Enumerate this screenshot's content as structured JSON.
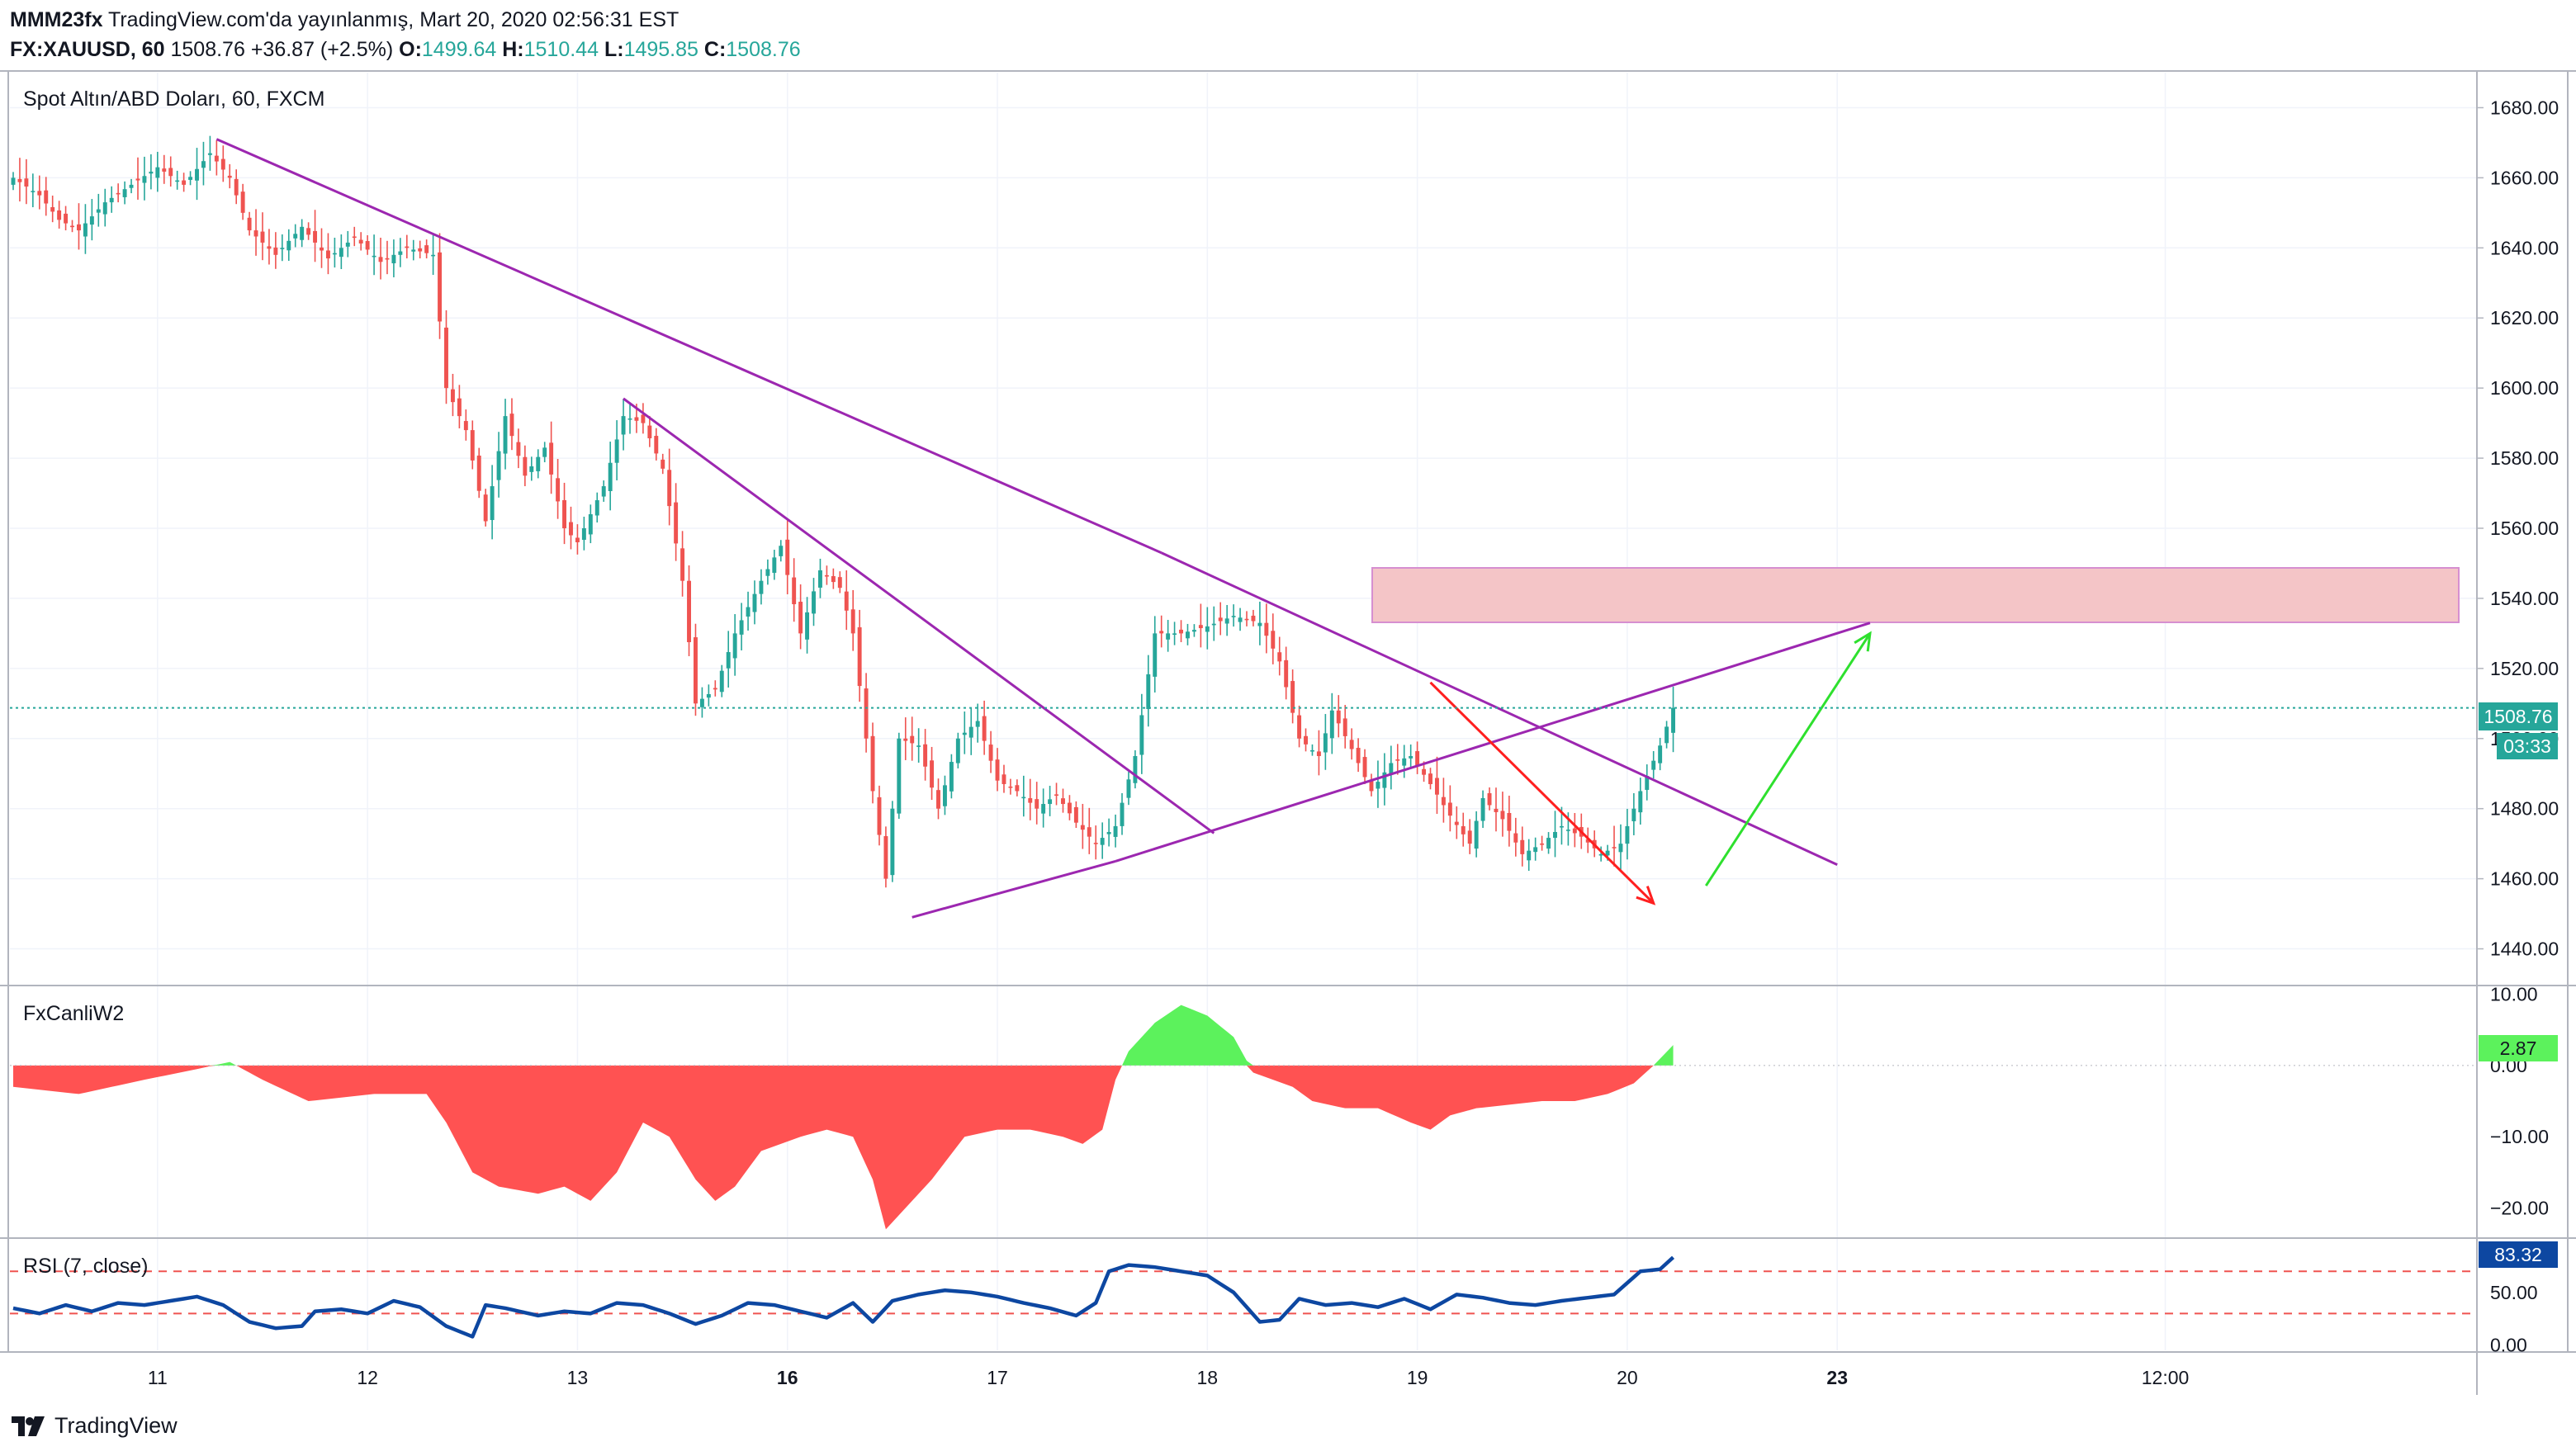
{
  "header": {
    "publisher": "MMM23fx",
    "published_text": "TradingView.com'da yayınlanmış, Mart 20, 2020 02:56:31 EST",
    "symbol": "FX:XAUUSD, 60",
    "last": "1508.76",
    "change": "+36.87 (+2.5%)",
    "o_label": "O:",
    "o_value": "1499.64",
    "h_label": "H:",
    "h_value": "1510.44",
    "l_label": "L:",
    "l_value": "1495.85",
    "c_label": "C:",
    "c_value": "1508.76"
  },
  "main_pane": {
    "title": "Spot Altın/ABD Doları, 60, FXCM",
    "price_label": "1508.76",
    "countdown": "03:33"
  },
  "osc_pane": {
    "title": "FxCanliW2",
    "value_label": "2.87",
    "ticks": [
      "10.00",
      "0.00",
      "−10.00",
      "−20.00"
    ]
  },
  "rsi_pane": {
    "title": "RSI (7, close)",
    "value_label": "83.32",
    "ticks": [
      "50.00",
      "0.00"
    ]
  },
  "footer": {
    "brand": "TradingView"
  },
  "colors": {
    "bull": "#26a69a",
    "bear": "#ef5350",
    "trendline": "#9c27b0",
    "zone_fill": "#f4c5c7",
    "zone_border": "#d68fd0",
    "red_arrow": "#ff1f1f",
    "green_arrow": "#2ee02e",
    "osc_pos": "#5cf25c",
    "osc_neg": "#ff5252",
    "rsi_line": "#0d47a1",
    "price_line": "#26a69a"
  },
  "chart_data": [
    {
      "type": "candlestick",
      "title": "Spot Altın/ABD Doları, 60, FXCM",
      "x_tick_labels": [
        "11",
        "12",
        "13",
        "16",
        "17",
        "18",
        "19",
        "20",
        "23",
        "12:00"
      ],
      "y_ticks": [
        1440,
        1460,
        1480,
        1500,
        1520,
        1540,
        1560,
        1580,
        1600,
        1620,
        1640,
        1660,
        1680
      ],
      "y_tick_labels": [
        "1440.00",
        "1460.00",
        "1480.00",
        "1500.00",
        "1520.00",
        "1540.00",
        "1560.00",
        "1580.00",
        "1600.00",
        "1620.00",
        "1640.00",
        "1660.00",
        "1680.00"
      ],
      "ylim": [
        1430,
        1690
      ],
      "last_price": 1508.76,
      "close_anchors": [
        [
          0,
          1660
        ],
        [
          4,
          1655
        ],
        [
          7,
          1648
        ],
        [
          10,
          1645
        ],
        [
          14,
          1653
        ],
        [
          18,
          1658
        ],
        [
          22,
          1663
        ],
        [
          26,
          1658
        ],
        [
          30,
          1667
        ],
        [
          33,
          1660
        ],
        [
          36,
          1645
        ],
        [
          40,
          1638
        ],
        [
          44,
          1646
        ],
        [
          48,
          1637
        ],
        [
          52,
          1643
        ],
        [
          56,
          1636
        ],
        [
          60,
          1640
        ],
        [
          64,
          1638
        ],
        [
          66,
          1600
        ],
        [
          69,
          1588
        ],
        [
          72,
          1562
        ],
        [
          75,
          1592
        ],
        [
          78,
          1575
        ],
        [
          81,
          1583
        ],
        [
          84,
          1560
        ],
        [
          86,
          1556
        ],
        [
          90,
          1572
        ],
        [
          93,
          1592
        ],
        [
          96,
          1590
        ],
        [
          99,
          1577
        ],
        [
          102,
          1545
        ],
        [
          104,
          1510
        ],
        [
          107,
          1514
        ],
        [
          110,
          1530
        ],
        [
          114,
          1545
        ],
        [
          117,
          1555
        ],
        [
          120,
          1530
        ],
        [
          123,
          1548
        ],
        [
          126,
          1543
        ],
        [
          128,
          1530
        ],
        [
          131,
          1485
        ],
        [
          133,
          1460
        ],
        [
          135,
          1500
        ],
        [
          138,
          1498
        ],
        [
          141,
          1480
        ],
        [
          144,
          1500
        ],
        [
          147,
          1505
        ],
        [
          150,
          1488
        ],
        [
          153,
          1485
        ],
        [
          156,
          1480
        ],
        [
          159,
          1484
        ],
        [
          162,
          1476
        ],
        [
          165,
          1470
        ],
        [
          168,
          1475
        ],
        [
          171,
          1495
        ],
        [
          174,
          1530
        ],
        [
          178,
          1530
        ],
        [
          182,
          1532
        ],
        [
          186,
          1535
        ],
        [
          190,
          1533
        ],
        [
          193,
          1522
        ],
        [
          196,
          1500
        ],
        [
          199,
          1495
        ],
        [
          201,
          1508
        ],
        [
          204,
          1497
        ],
        [
          207,
          1485
        ],
        [
          210,
          1493
        ],
        [
          213,
          1495
        ],
        [
          216,
          1487
        ],
        [
          219,
          1478
        ],
        [
          222,
          1470
        ],
        [
          224,
          1483
        ],
        [
          227,
          1477
        ],
        [
          230,
          1467
        ],
        [
          233,
          1470
        ],
        [
          236,
          1475
        ],
        [
          239,
          1472
        ],
        [
          242,
          1467
        ],
        [
          245,
          1470
        ],
        [
          248,
          1485
        ],
        [
          251,
          1498
        ],
        [
          253,
          1508.76
        ]
      ]
    },
    {
      "type": "area",
      "title": "FxCanliW2",
      "y_tick_labels": [
        "10.00",
        "0.00",
        "−10.00",
        "−20.00"
      ],
      "ylim": [
        -24,
        11
      ],
      "last_value": 2.87,
      "anchors": [
        [
          0,
          -3
        ],
        [
          10,
          -4
        ],
        [
          20,
          -2
        ],
        [
          28,
          -0.5
        ],
        [
          33,
          0.5
        ],
        [
          38,
          -2
        ],
        [
          45,
          -5
        ],
        [
          55,
          -4
        ],
        [
          63,
          -4
        ],
        [
          66,
          -8
        ],
        [
          70,
          -15
        ],
        [
          74,
          -17
        ],
        [
          80,
          -18
        ],
        [
          84,
          -17
        ],
        [
          88,
          -19
        ],
        [
          92,
          -15
        ],
        [
          96,
          -8
        ],
        [
          100,
          -10
        ],
        [
          104,
          -16
        ],
        [
          107,
          -19
        ],
        [
          110,
          -17
        ],
        [
          114,
          -12
        ],
        [
          120,
          -10
        ],
        [
          124,
          -9
        ],
        [
          128,
          -10
        ],
        [
          131,
          -16
        ],
        [
          133,
          -23
        ],
        [
          136,
          -20
        ],
        [
          140,
          -16
        ],
        [
          145,
          -10
        ],
        [
          150,
          -9
        ],
        [
          155,
          -9
        ],
        [
          160,
          -10
        ],
        [
          163,
          -11
        ],
        [
          166,
          -9
        ],
        [
          168,
          -2
        ],
        [
          170,
          2
        ],
        [
          174,
          6
        ],
        [
          178,
          8.5
        ],
        [
          182,
          7
        ],
        [
          186,
          4
        ],
        [
          189,
          -1
        ],
        [
          192,
          -2
        ],
        [
          195,
          -3
        ],
        [
          198,
          -5
        ],
        [
          203,
          -6
        ],
        [
          208,
          -6
        ],
        [
          213,
          -8
        ],
        [
          216,
          -9
        ],
        [
          219,
          -7
        ],
        [
          223,
          -6
        ],
        [
          228,
          -5.5
        ],
        [
          233,
          -5
        ],
        [
          238,
          -5
        ],
        [
          243,
          -4
        ],
        [
          247,
          -2.5
        ],
        [
          250,
          0
        ],
        [
          253,
          2.87
        ]
      ]
    },
    {
      "type": "line",
      "title": "RSI (7, close)",
      "y_tick_labels": [
        "50.00",
        "0.00"
      ],
      "ylim": [
        -5,
        100
      ],
      "levels": [
        70,
        30
      ],
      "last_value": 83.32,
      "anchors": [
        [
          0,
          35
        ],
        [
          4,
          30
        ],
        [
          8,
          38
        ],
        [
          12,
          32
        ],
        [
          16,
          40
        ],
        [
          20,
          38
        ],
        [
          24,
          42
        ],
        [
          28,
          46
        ],
        [
          32,
          38
        ],
        [
          36,
          22
        ],
        [
          40,
          16
        ],
        [
          44,
          18
        ],
        [
          46,
          32
        ],
        [
          50,
          34
        ],
        [
          54,
          30
        ],
        [
          58,
          42
        ],
        [
          62,
          36
        ],
        [
          66,
          18
        ],
        [
          70,
          8
        ],
        [
          72,
          38
        ],
        [
          75,
          35
        ],
        [
          80,
          28
        ],
        [
          84,
          32
        ],
        [
          88,
          30
        ],
        [
          92,
          40
        ],
        [
          96,
          38
        ],
        [
          100,
          30
        ],
        [
          104,
          20
        ],
        [
          108,
          28
        ],
        [
          112,
          40
        ],
        [
          116,
          38
        ],
        [
          120,
          32
        ],
        [
          124,
          26
        ],
        [
          128,
          40
        ],
        [
          131,
          22
        ],
        [
          134,
          42
        ],
        [
          138,
          48
        ],
        [
          142,
          52
        ],
        [
          146,
          50
        ],
        [
          150,
          46
        ],
        [
          154,
          40
        ],
        [
          158,
          35
        ],
        [
          162,
          28
        ],
        [
          165,
          40
        ],
        [
          167,
          70
        ],
        [
          170,
          76
        ],
        [
          174,
          74
        ],
        [
          178,
          70
        ],
        [
          182,
          66
        ],
        [
          186,
          50
        ],
        [
          188,
          36
        ],
        [
          190,
          22
        ],
        [
          193,
          24
        ],
        [
          196,
          44
        ],
        [
          200,
          38
        ],
        [
          204,
          40
        ],
        [
          208,
          36
        ],
        [
          212,
          44
        ],
        [
          216,
          34
        ],
        [
          220,
          48
        ],
        [
          224,
          45
        ],
        [
          228,
          40
        ],
        [
          232,
          38
        ],
        [
          236,
          42
        ],
        [
          240,
          45
        ],
        [
          244,
          48
        ],
        [
          248,
          70
        ],
        [
          251,
          72
        ],
        [
          253,
          83.32
        ]
      ]
    }
  ]
}
